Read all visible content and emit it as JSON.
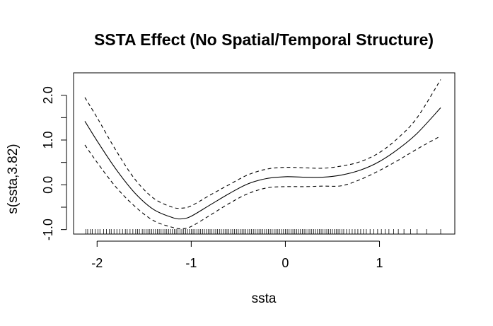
{
  "chart_data": {
    "type": "line",
    "title": "SSTA Effect (No Spatial/Temporal Structure)",
    "xlabel": "ssta",
    "ylabel": "s(ssta,3.82)",
    "xlim": [
      -2.25,
      1.8
    ],
    "ylim": [
      -1.1,
      2.5
    ],
    "x_ticks": [
      -2,
      -1,
      0,
      1
    ],
    "x_tick_labels": [
      "-2",
      "-1",
      "0",
      "1"
    ],
    "y_ticks": [
      -1.0,
      -0.5,
      0.0,
      0.5,
      1.0,
      1.5,
      2.0
    ],
    "y_tick_labels": [
      "-1.0",
      "",
      "0.0",
      "",
      "1.0",
      "",
      "2.0"
    ],
    "grid": false,
    "legend": "none",
    "series": [
      {
        "role": "estimate",
        "line_style": "solid",
        "x": [
          -2.13,
          -2.0,
          -1.8,
          -1.6,
          -1.4,
          -1.2,
          -1.1,
          -1.0,
          -0.8,
          -0.6,
          -0.4,
          -0.2,
          0.0,
          0.2,
          0.4,
          0.6,
          0.8,
          1.0,
          1.2,
          1.4,
          1.65
        ],
        "y": [
          1.42,
          0.98,
          0.35,
          -0.18,
          -0.55,
          -0.73,
          -0.76,
          -0.7,
          -0.45,
          -0.2,
          0.02,
          0.14,
          0.18,
          0.17,
          0.17,
          0.22,
          0.33,
          0.52,
          0.8,
          1.15,
          1.72
        ]
      },
      {
        "role": "upper confidence band",
        "line_style": "dashed",
        "x": [
          -2.13,
          -2.0,
          -1.8,
          -1.6,
          -1.4,
          -1.2,
          -1.1,
          -1.0,
          -0.8,
          -0.6,
          -0.4,
          -0.2,
          0.0,
          0.2,
          0.4,
          0.6,
          0.8,
          1.0,
          1.2,
          1.4,
          1.65
        ],
        "y": [
          1.95,
          1.5,
          0.77,
          0.13,
          -0.3,
          -0.5,
          -0.52,
          -0.47,
          -0.23,
          0.0,
          0.22,
          0.35,
          0.39,
          0.38,
          0.37,
          0.42,
          0.52,
          0.72,
          1.05,
          1.5,
          2.35
        ]
      },
      {
        "role": "lower confidence band",
        "line_style": "dashed",
        "x": [
          -2.13,
          -2.0,
          -1.8,
          -1.6,
          -1.4,
          -1.2,
          -1.1,
          -1.0,
          -0.8,
          -0.6,
          -0.4,
          -0.2,
          0.0,
          0.2,
          0.4,
          0.6,
          0.8,
          1.0,
          1.2,
          1.4,
          1.65
        ],
        "y": [
          0.89,
          0.5,
          -0.05,
          -0.48,
          -0.8,
          -0.95,
          -0.98,
          -0.93,
          -0.68,
          -0.42,
          -0.2,
          -0.07,
          -0.04,
          -0.04,
          -0.03,
          -0.02,
          0.12,
          0.32,
          0.55,
          0.8,
          1.09
        ]
      }
    ],
    "rug": [
      -2.12,
      -2.1,
      -2.07,
      -2.05,
      -2.02,
      -1.99,
      -1.97,
      -1.93,
      -1.9,
      -1.87,
      -1.85,
      -1.82,
      -1.79,
      -1.76,
      -1.73,
      -1.7,
      -1.68,
      -1.65,
      -1.62,
      -1.59,
      -1.57,
      -1.55,
      -1.52,
      -1.5,
      -1.48,
      -1.46,
      -1.44,
      -1.42,
      -1.4,
      -1.38,
      -1.36,
      -1.34,
      -1.32,
      -1.3,
      -1.28,
      -1.26,
      -1.24,
      -1.22,
      -1.2,
      -1.18,
      -1.16,
      -1.14,
      -1.12,
      -1.1,
      -1.08,
      -1.06,
      -1.04,
      -1.02,
      -1.0,
      -0.98,
      -0.96,
      -0.94,
      -0.92,
      -0.9,
      -0.88,
      -0.86,
      -0.84,
      -0.82,
      -0.8,
      -0.78,
      -0.76,
      -0.74,
      -0.72,
      -0.7,
      -0.68,
      -0.66,
      -0.64,
      -0.62,
      -0.6,
      -0.58,
      -0.56,
      -0.54,
      -0.52,
      -0.5,
      -0.48,
      -0.46,
      -0.44,
      -0.42,
      -0.4,
      -0.38,
      -0.36,
      -0.34,
      -0.32,
      -0.3,
      -0.28,
      -0.26,
      -0.24,
      -0.22,
      -0.2,
      -0.18,
      -0.16,
      -0.14,
      -0.12,
      -0.1,
      -0.08,
      -0.06,
      -0.04,
      -0.02,
      0.0,
      0.02,
      0.04,
      0.06,
      0.08,
      0.1,
      0.12,
      0.14,
      0.16,
      0.18,
      0.2,
      0.22,
      0.24,
      0.26,
      0.28,
      0.3,
      0.32,
      0.34,
      0.36,
      0.38,
      0.4,
      0.42,
      0.44,
      0.46,
      0.48,
      0.5,
      0.52,
      0.54,
      0.56,
      0.58,
      0.6,
      0.62,
      0.65,
      0.68,
      0.71,
      0.74,
      0.77,
      0.8,
      0.83,
      0.86,
      0.9,
      0.94,
      0.98,
      1.02,
      1.06,
      1.1,
      1.15,
      1.2,
      1.26,
      1.33,
      1.4,
      1.5,
      1.65
    ]
  }
}
